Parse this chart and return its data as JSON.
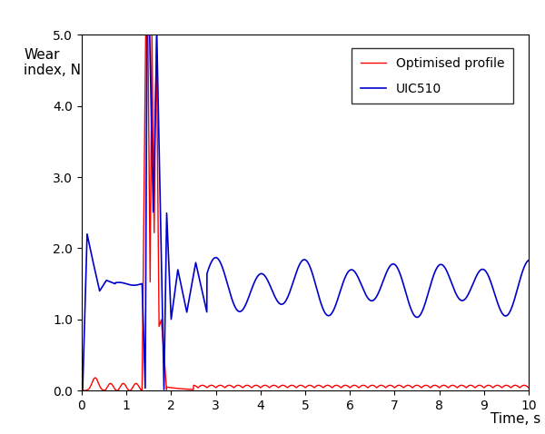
{
  "title": "",
  "ylabel": "Wear\nindex, N",
  "xlabel": "Time, s",
  "xlim": [
    0,
    10
  ],
  "ylim": [
    0,
    5.0
  ],
  "yticks": [
    0.0,
    1.0,
    2.0,
    3.0,
    4.0,
    5.0
  ],
  "xticks": [
    0,
    1,
    2,
    3,
    4,
    5,
    6,
    7,
    8,
    9,
    10
  ],
  "legend_labels": [
    "Optimised profile",
    "UIC510"
  ],
  "line_colors": [
    "#ff0000",
    "#0000cd"
  ],
  "background_color": "#ffffff",
  "figsize": [
    6.0,
    4.78
  ],
  "dpi": 100
}
